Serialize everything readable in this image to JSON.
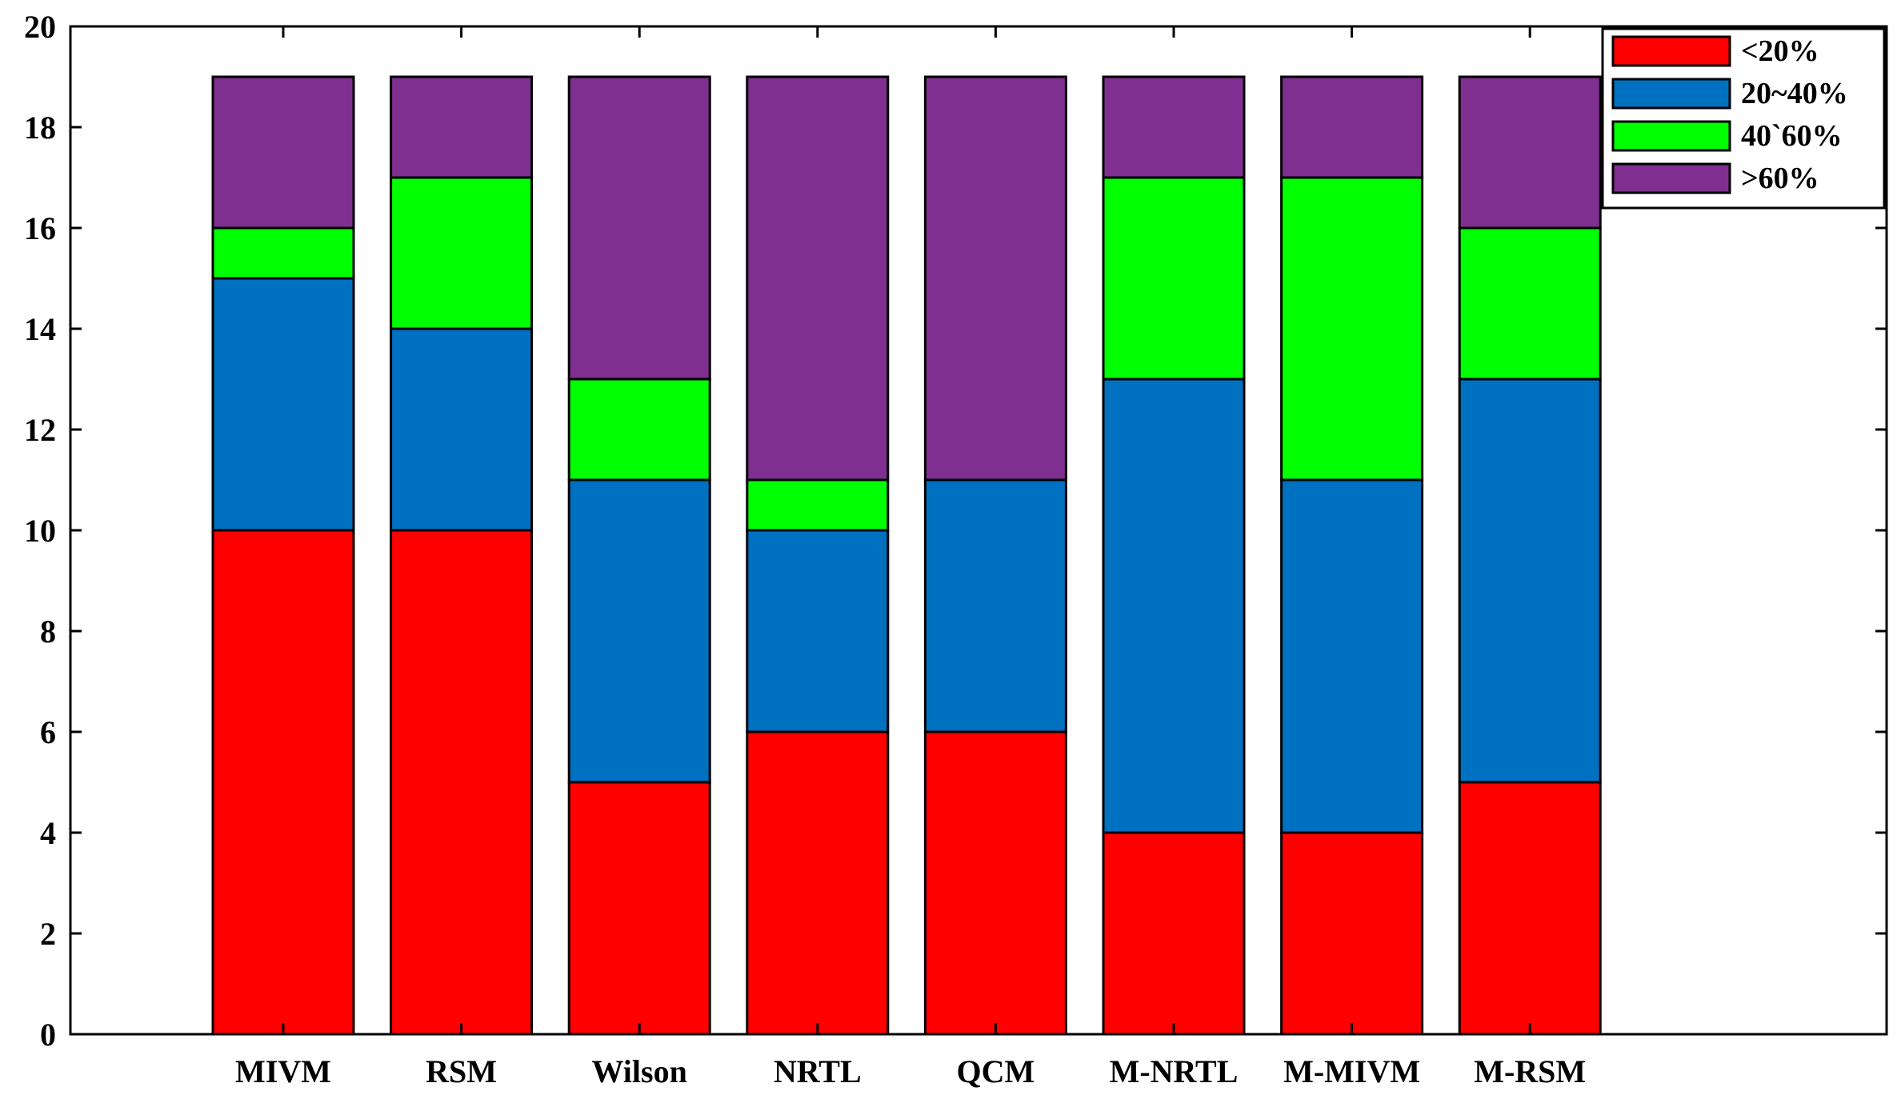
{
  "chart_data": {
    "type": "bar",
    "stacked": true,
    "title": "",
    "xlabel": "",
    "ylabel": "",
    "ylim": [
      0,
      20
    ],
    "yticks": [
      0,
      2,
      4,
      6,
      8,
      10,
      12,
      14,
      16,
      18,
      20
    ],
    "categories": [
      "MIVM",
      "RSM",
      "Wilson",
      "NRTL",
      "QCM",
      "M-NRTL",
      "M-MIVM",
      "M-RSM"
    ],
    "series": [
      {
        "name": "<20%",
        "color": "#ff0000",
        "values": [
          10,
          10,
          5,
          6,
          6,
          4,
          4,
          5
        ]
      },
      {
        "name": "20~40%",
        "color": "#0070c0",
        "values": [
          5,
          4,
          6,
          4,
          5,
          9,
          7,
          8
        ]
      },
      {
        "name": "40`60%",
        "color": "#00ff00",
        "values": [
          1,
          3,
          2,
          1,
          0,
          4,
          6,
          3
        ]
      },
      {
        "name": ">60%",
        "color": "#7f2f8f",
        "values": [
          3,
          2,
          6,
          8,
          8,
          2,
          2,
          3
        ]
      }
    ],
    "legend_position": "top-right",
    "grid": false
  }
}
